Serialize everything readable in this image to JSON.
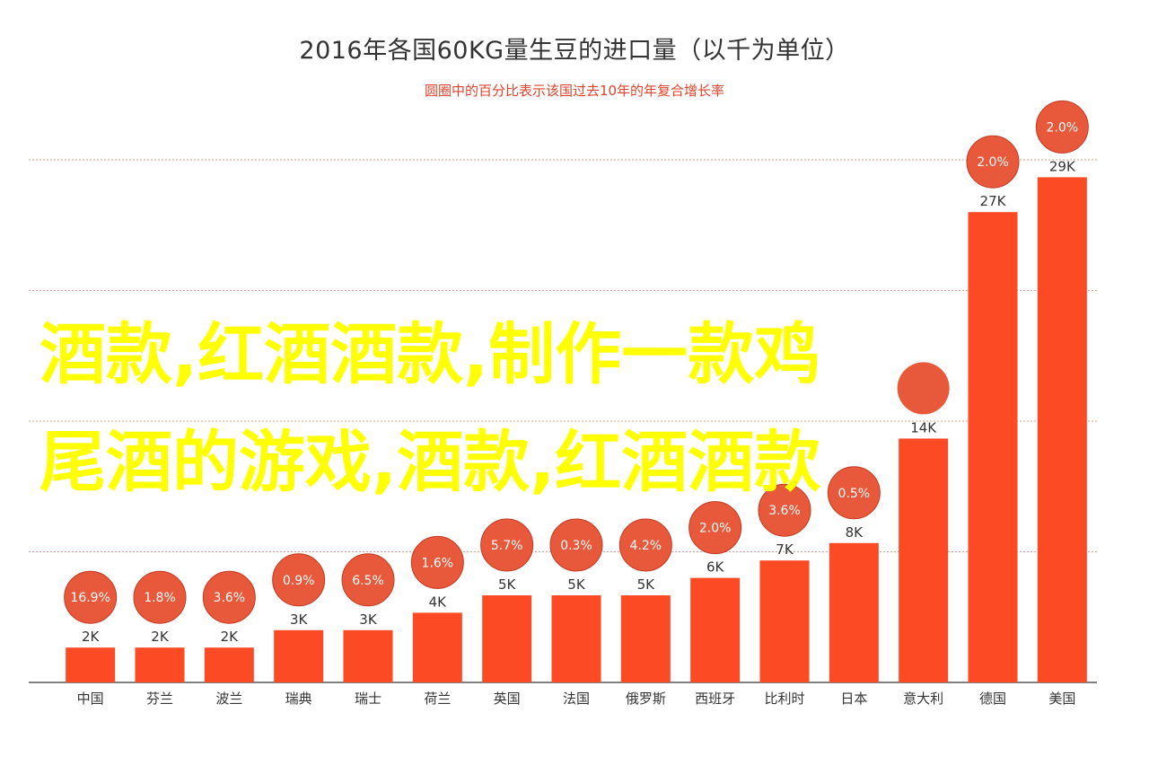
{
  "chart_data": {
    "type": "bar",
    "title": "2016年各国60KG量生豆的进口量（以千为单位）",
    "subtitle": "圆圈中的百分比表示该国过去10年的年复合增长率",
    "categories": [
      "中国",
      "芬兰",
      "波兰",
      "瑞典",
      "瑞士",
      "荷兰",
      "英国",
      "法国",
      "俄罗斯",
      "西班牙",
      "比利时",
      "日本",
      "意大利",
      "德国",
      "美国"
    ],
    "values": [
      2,
      2,
      2,
      3,
      3,
      4,
      5,
      5,
      5,
      6,
      7,
      8,
      14,
      27,
      29
    ],
    "value_labels": [
      "2K",
      "2K",
      "2K",
      "3K",
      "3K",
      "4K",
      "5K",
      "5K",
      "5K",
      "6K",
      "7K",
      "8K",
      "14K",
      "27K",
      "29K"
    ],
    "growth_labels": [
      "16.9%",
      "1.8%",
      "3.6%",
      "0.9%",
      "6.5%",
      "1.6%",
      "5.7%",
      "0.3%",
      "4.2%",
      "2.0%",
      "3.6%",
      "0.5%",
      "",
      "2.0%",
      "2.0%"
    ],
    "ylim": [
      0,
      30
    ],
    "grid": true,
    "colors": {
      "bar": "#fc4a25",
      "circle": "#e8583a",
      "circle_text": "#ffffff",
      "grid": "#d9a08e",
      "axis": "#555555",
      "tick_text": "#333333",
      "value_text": "#333333"
    }
  },
  "overlay": {
    "line1": "酒款,红酒酒款,制作一款鸡",
    "line2": "尾酒的游戏,酒款,红酒酒款"
  }
}
